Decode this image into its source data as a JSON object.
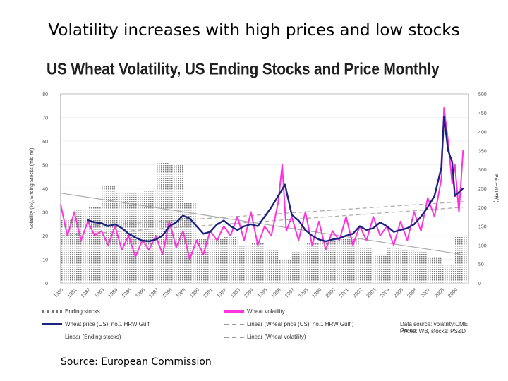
{
  "slide": {
    "title": "Volatility increases with high prices and low stocks",
    "source": "Source: European Commission"
  },
  "chart_data": {
    "type": "bar",
    "title": "US Wheat Volatility, US Ending Stocks and Price Monthly",
    "ylabel_left": "Volatility (%), Ending Stocks (mio mt)",
    "ylabel_right": "Price (US$/t)",
    "ylim_left": [
      0,
      80
    ],
    "yticks_left": [
      "0",
      "10",
      "20",
      "30",
      "40",
      "50",
      "60",
      "70",
      "80"
    ],
    "ylim_right": [
      0,
      500
    ],
    "yticks_right": [
      "0",
      "50",
      "100",
      "150",
      "200",
      "250",
      "300",
      "350",
      "400",
      "450",
      "500"
    ],
    "x_start_year": 1980,
    "x_end_year": 2010,
    "xtick_labels": [
      "1980",
      "1981",
      "1982",
      "1983",
      "1984",
      "1985",
      "1986",
      "1987",
      "1988",
      "1989",
      "1990",
      "1991",
      "1992",
      "1993",
      "1994",
      "1995",
      "1996",
      "1997",
      "1998",
      "1999",
      "2000",
      "2001",
      "2002",
      "2003",
      "2004",
      "2005",
      "2006",
      "2007",
      "2008",
      "2009"
    ],
    "colors": {
      "stocks": "#777777",
      "price": "#1a237e",
      "volatility": "#ff33dd",
      "trend": "#aaaaaa"
    },
    "series": [
      {
        "name": "Ending stocks",
        "kind": "bar",
        "axis": "left",
        "x": [
          1980,
          1981,
          1982,
          1983,
          1984,
          1985,
          1986,
          1987,
          1988,
          1989,
          1990,
          1991,
          1992,
          1993,
          1994,
          1995,
          1996,
          1997,
          1998,
          1999,
          2000,
          2001,
          2002,
          2003,
          2004,
          2005,
          2006,
          2007,
          2008,
          2009
        ],
        "values": [
          27,
          31,
          32,
          41,
          38,
          38,
          39,
          51,
          50,
          34,
          19,
          19,
          20,
          16,
          17,
          14,
          10,
          13,
          17,
          18,
          19,
          19,
          15,
          12,
          15,
          14,
          13,
          11,
          8,
          20
        ]
      },
      {
        "name": "Wheat price (US), no.1 HRW Gulf",
        "kind": "line",
        "axis": "right",
        "x": [
          1982,
          1982.5,
          1983,
          1983.5,
          1984,
          1984.5,
          1985,
          1985.5,
          1986,
          1986.5,
          1987,
          1987.5,
          1988,
          1988.5,
          1989,
          1989.5,
          1990,
          1990.5,
          1991,
          1991.5,
          1992,
          1992.5,
          1993,
          1993.5,
          1994,
          1994.5,
          1995,
          1995.5,
          1996,
          1996.5,
          1997,
          1997.5,
          1998,
          1998.5,
          1999,
          1999.5,
          2000,
          2000.5,
          2001,
          2001.5,
          2002,
          2002.5,
          2003,
          2003.5,
          2004,
          2004.5,
          2005,
          2005.5,
          2006,
          2006.5,
          2007,
          2007.5,
          2008,
          2008.2,
          2008.5,
          2008.8,
          2009,
          2009.3,
          2009.6
        ],
        "values": [
          166,
          160,
          158,
          150,
          155,
          145,
          130,
          120,
          112,
          110,
          115,
          125,
          150,
          160,
          178,
          170,
          150,
          130,
          135,
          155,
          165,
          150,
          140,
          150,
          155,
          150,
          175,
          200,
          230,
          260,
          180,
          165,
          140,
          125,
          115,
          110,
          115,
          118,
          125,
          130,
          150,
          140,
          145,
          160,
          150,
          135,
          140,
          145,
          155,
          175,
          200,
          230,
          305,
          440,
          350,
          320,
          230,
          240,
          250
        ]
      },
      {
        "name": "Wheat volatility",
        "kind": "line",
        "axis": "left",
        "x": [
          1980,
          1980.5,
          1981,
          1981.5,
          1982,
          1982.5,
          1983,
          1983.5,
          1984,
          1984.5,
          1985,
          1985.5,
          1986,
          1986.5,
          1987,
          1987.5,
          1988,
          1988.5,
          1989,
          1989.5,
          1990,
          1990.5,
          1991,
          1991.5,
          1992,
          1992.5,
          1993,
          1993.5,
          1994,
          1994.5,
          1995,
          1995.5,
          1996,
          1996.3,
          1996.6,
          1997,
          1997.5,
          1998,
          1998.5,
          1999,
          1999.5,
          2000,
          2000.5,
          2001,
          2001.5,
          2002,
          2002.5,
          2003,
          2003.5,
          2004,
          2004.5,
          2005,
          2005.5,
          2006,
          2006.5,
          2007,
          2007.5,
          2008,
          2008.2,
          2008.5,
          2008.8,
          2009,
          2009.3,
          2009.6
        ],
        "values": [
          33,
          20,
          30,
          18,
          26,
          20,
          22,
          16,
          24,
          14,
          20,
          11,
          18,
          14,
          20,
          12,
          26,
          15,
          22,
          10,
          18,
          12,
          22,
          18,
          24,
          20,
          28,
          18,
          30,
          16,
          24,
          20,
          34,
          50,
          22,
          28,
          18,
          30,
          16,
          26,
          14,
          22,
          18,
          28,
          16,
          24,
          18,
          28,
          20,
          24,
          16,
          26,
          18,
          30,
          22,
          36,
          28,
          44,
          74,
          60,
          42,
          50,
          30,
          56
        ]
      },
      {
        "name": "Linear (Wheat price (US), no.1 HRW Gulf )",
        "kind": "trend",
        "axis": "right",
        "x": [
          1982,
          2009.6
        ],
        "values": [
          150,
          215
        ]
      },
      {
        "name": "Linear (Ending stocks)",
        "kind": "trend",
        "axis": "left",
        "x": [
          1980,
          2009.6
        ],
        "values": [
          38,
          12
        ]
      },
      {
        "name": "Linear (Wheat volatility)",
        "kind": "trend",
        "axis": "left",
        "x": [
          1980,
          2009.6
        ],
        "values": [
          20,
          32
        ]
      }
    ],
    "legend": [
      {
        "label": "Ending stocks",
        "style": "stocks"
      },
      {
        "label": "Wheat volatility",
        "style": "volatility"
      },
      {
        "label": "Wheat price (US), no.1 HRW Gulf",
        "style": "price"
      },
      {
        "label": "Linear (Wheat price (US), no.1 HRW Gulf )",
        "style": "trend-dash"
      },
      {
        "label": "Linear (Ending stocks)",
        "style": "trend-solid"
      },
      {
        "label": "Linear (Wheat volatility)",
        "style": "trend-dash"
      }
    ],
    "notes": [
      "Data source: volatility:CME Group",
      "Prices: WB, stocks: PS&D"
    ],
    "legend_position": "bottom"
  }
}
